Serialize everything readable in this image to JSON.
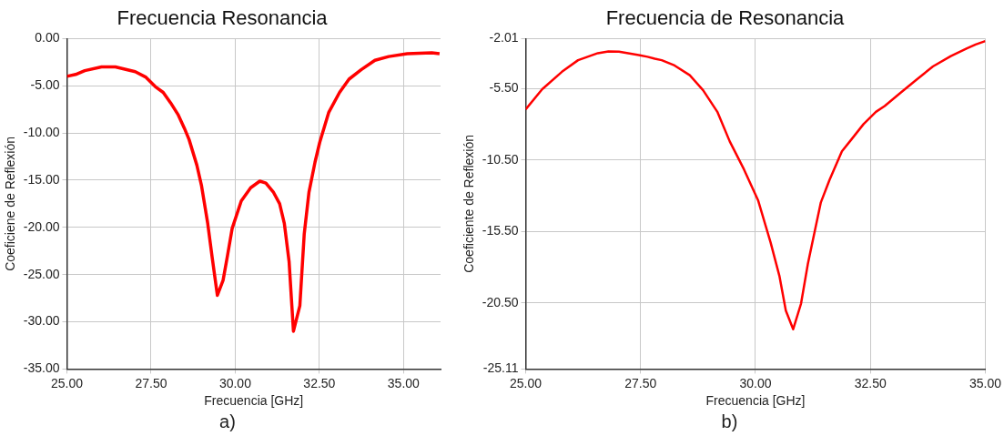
{
  "chart_data": [
    {
      "type": "line",
      "title": "Frecuencia Resonancia",
      "xlabel": "Frecuencia [GHz]",
      "ylabel": "Coeficiene de Reflexión",
      "annotations": [
        "a)"
      ],
      "xlim": [
        25,
        36.1
      ],
      "xticks": [
        {
          "value": 25,
          "label": "25.00"
        },
        {
          "value": 27.5,
          "label": "27.50"
        },
        {
          "value": 30,
          "label": "30.00"
        },
        {
          "value": 32.5,
          "label": "32.50"
        },
        {
          "value": 35,
          "label": "35.00"
        }
      ],
      "ylim": [
        -35,
        0
      ],
      "yticks": [
        {
          "value": -35,
          "label": "-35.00"
        },
        {
          "value": -30,
          "label": "-30.00"
        },
        {
          "value": -25,
          "label": "-25.00"
        },
        {
          "value": -20,
          "label": "-20.00"
        },
        {
          "value": -15,
          "label": "-15.00"
        },
        {
          "value": -10,
          "label": "-10.00"
        },
        {
          "value": -5,
          "label": "-5.00"
        },
        {
          "value": 0,
          "label": "0.00"
        }
      ],
      "grid": true,
      "legend": false,
      "marker": "none",
      "line_style": "solid",
      "x": [
        25,
        25.26,
        25.53,
        26.03,
        26.44,
        27.03,
        27.35,
        27.63,
        27.86,
        28.08,
        28.31,
        28.49,
        28.63,
        28.86,
        29.0,
        29.18,
        29.32,
        29.47,
        29.64,
        29.77,
        29.91,
        30.18,
        30.46,
        30.73,
        30.91,
        31.14,
        31.32,
        31.46,
        31.6,
        31.73,
        31.92,
        32.05,
        32.19,
        32.37,
        32.51,
        32.78,
        33.1,
        33.38,
        33.74,
        34.15,
        34.56,
        35.11,
        35.84,
        36.07
      ],
      "series": [
        {
          "color": "#ff0000",
          "values": [
            -4.0,
            -3.8,
            -3.4,
            -3.0,
            -3.0,
            -3.5,
            -4.1,
            -5.1,
            -5.7,
            -6.8,
            -8.1,
            -9.5,
            -10.7,
            -13.4,
            -15.6,
            -19.5,
            -23.3,
            -27.2,
            -25.6,
            -23.0,
            -20.1,
            -17.2,
            -15.8,
            -15.1,
            -15.3,
            -16.3,
            -17.5,
            -19.6,
            -23.6,
            -31.0,
            -28.3,
            -20.7,
            -16.3,
            -13.1,
            -11.0,
            -7.8,
            -5.7,
            -4.3,
            -3.3,
            -2.3,
            -1.9,
            -1.6,
            -1.5,
            -1.6
          ]
        }
      ]
    },
    {
      "type": "line",
      "title": "Frecuencia de Resonancia",
      "xlabel": "Frecuencia [GHz]",
      "ylabel": "Coeficiente de Reflexión",
      "annotations": [
        "b)"
      ],
      "xlim": [
        25,
        35
      ],
      "xticks": [
        {
          "value": 25,
          "label": "25.00"
        },
        {
          "value": 27.5,
          "label": "27.50"
        },
        {
          "value": 30,
          "label": "30.00"
        },
        {
          "value": 32.5,
          "label": "32.50"
        },
        {
          "value": 35,
          "label": "35.00"
        }
      ],
      "ylim": [
        -25.11,
        -2.01
      ],
      "yticks": [
        {
          "value": -25.11,
          "label": "-25.11"
        },
        {
          "value": -20.5,
          "label": "-20.50"
        },
        {
          "value": -15.5,
          "label": "-15.50"
        },
        {
          "value": -10.5,
          "label": "-10.50"
        },
        {
          "value": -5.5,
          "label": "-5.50"
        },
        {
          "value": -2.01,
          "label": "-2.01"
        }
      ],
      "grid": true,
      "legend": false,
      "marker": "none",
      "line_style": "solid",
      "x": [
        25,
        25.36,
        25.79,
        26.14,
        26.57,
        26.8,
        27.03,
        27.46,
        27.65,
        27.81,
        27.96,
        28.24,
        28.57,
        28.86,
        29.17,
        29.44,
        29.75,
        30.06,
        30.33,
        30.52,
        30.66,
        30.82,
        30.99,
        31.14,
        31.42,
        31.61,
        31.88,
        32.08,
        32.35,
        32.62,
        32.81,
        33.16,
        33.51,
        33.86,
        34.25,
        34.6,
        34.79,
        35
      ],
      "series": [
        {
          "color": "#ff0000",
          "values": [
            -6.96,
            -5.55,
            -4.33,
            -3.52,
            -3.03,
            -2.91,
            -2.93,
            -3.16,
            -3.28,
            -3.42,
            -3.52,
            -3.89,
            -4.57,
            -5.62,
            -7.13,
            -9.2,
            -11.16,
            -13.35,
            -16.28,
            -18.6,
            -21.03,
            -22.33,
            -20.55,
            -17.75,
            -13.48,
            -11.9,
            -9.89,
            -9.09,
            -7.99,
            -7.13,
            -6.72,
            -5.79,
            -4.86,
            -3.96,
            -3.23,
            -2.69,
            -2.42,
            -2.18
          ]
        }
      ]
    }
  ]
}
